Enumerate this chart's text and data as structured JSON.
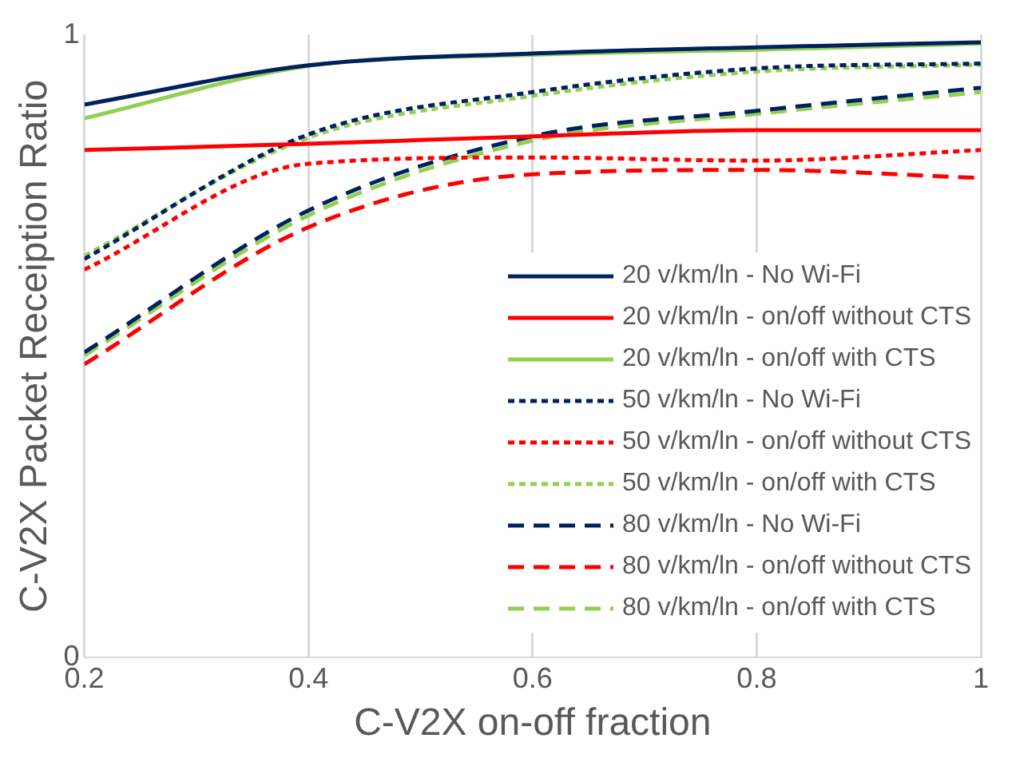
{
  "chart_data": {
    "type": "line",
    "xlabel": "C-V2X on-off fraction",
    "ylabel": "C-V2X Packet Receiption Ratio",
    "x": [
      0.2,
      0.4,
      0.6,
      0.8,
      1
    ],
    "xlim": [
      0.2,
      1
    ],
    "xticks": [
      0.2,
      0.4,
      0.6,
      0.8,
      1
    ],
    "ylim": [
      0,
      1
    ],
    "yticks": [
      0,
      1
    ],
    "grid": "x",
    "legend": "bottom right",
    "marker": "none",
    "series": [
      {
        "name": "20 v/km/ln - No Wi-Fi",
        "color": "#002060",
        "line_style": "solid",
        "values": [
          0.888,
          0.951,
          0.97,
          0.98,
          0.988
        ]
      },
      {
        "name": "20 v/km/ln - on/off without CTS",
        "color": "#ff0000",
        "line_style": "solid",
        "values": [
          0.815,
          0.825,
          0.837,
          0.847,
          0.847
        ]
      },
      {
        "name": "20 v/km/ln - on/off with CTS",
        "color": "#92d050",
        "line_style": "solid",
        "values": [
          0.866,
          0.95,
          0.968,
          0.976,
          0.986
        ]
      },
      {
        "name": "50 v/km/ln - No Wi-Fi",
        "color": "#002060",
        "line_style": "dotted",
        "values": [
          0.64,
          0.84,
          0.908,
          0.946,
          0.954
        ]
      },
      {
        "name": "50 v/km/ln - on/off without CTS",
        "color": "#ff0000",
        "line_style": "dotted",
        "values": [
          0.623,
          0.793,
          0.803,
          0.798,
          0.815
        ]
      },
      {
        "name": "50 v/km/ln - on/off with CTS",
        "color": "#92d050",
        "line_style": "dotted",
        "values": [
          0.645,
          0.835,
          0.902,
          0.941,
          0.952
        ]
      },
      {
        "name": "80 v/km/ln - No Wi-Fi",
        "color": "#002060",
        "line_style": "dashed",
        "values": [
          0.49,
          0.718,
          0.837,
          0.878,
          0.915
        ]
      },
      {
        "name": "80 v/km/ln - on/off without CTS",
        "color": "#ff0000",
        "line_style": "dashed",
        "values": [
          0.471,
          0.691,
          0.776,
          0.783,
          0.77
        ]
      },
      {
        "name": "80 v/km/ln - on/off with CTS",
        "color": "#92d050",
        "line_style": "dashed",
        "values": [
          0.485,
          0.71,
          0.83,
          0.873,
          0.908
        ]
      }
    ]
  }
}
